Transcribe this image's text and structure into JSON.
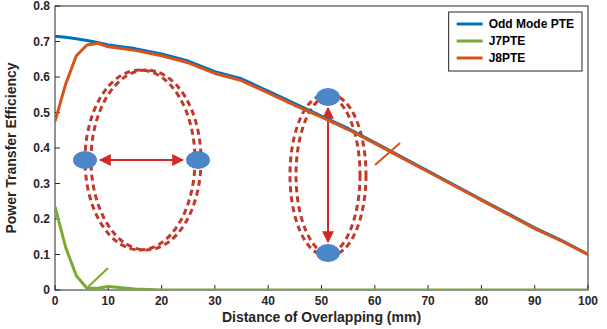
{
  "chart_data": {
    "type": "line",
    "x_label": "Distance of Overlapping (mm)",
    "y_label": "Power Transfer Efficiency",
    "x": [
      0,
      2,
      4,
      6,
      8,
      10,
      15,
      20,
      25,
      30,
      35,
      40,
      45,
      50,
      55,
      60,
      65,
      70,
      75,
      80,
      85,
      90,
      95,
      100
    ],
    "series": [
      {
        "name": "Odd Mode PTE",
        "color": "#0072bd",
        "values": [
          0.715,
          0.712,
          0.708,
          0.703,
          0.697,
          0.69,
          0.68,
          0.665,
          0.645,
          0.615,
          0.595,
          0.56,
          0.525,
          0.49,
          0.455,
          0.415,
          0.375,
          0.335,
          0.295,
          0.255,
          0.215,
          0.175,
          0.14,
          0.1
        ]
      },
      {
        "name": "J7PTE",
        "color": "#77ac30",
        "values": [
          0.235,
          0.12,
          0.04,
          0.005,
          0.005,
          0.01,
          0.003,
          0,
          0,
          0,
          0,
          0,
          0,
          0,
          0,
          0,
          0,
          0,
          0,
          0,
          0,
          0,
          0,
          0
        ]
      },
      {
        "name": "J8PTE",
        "color": "#d95319",
        "values": [
          0.475,
          0.58,
          0.66,
          0.69,
          0.695,
          0.685,
          0.675,
          0.66,
          0.64,
          0.61,
          0.59,
          0.555,
          0.52,
          0.487,
          0.452,
          0.413,
          0.373,
          0.333,
          0.293,
          0.253,
          0.213,
          0.173,
          0.138,
          0.1
        ]
      }
    ],
    "xlim": [
      0,
      100
    ],
    "xticks": [
      0,
      10,
      20,
      30,
      40,
      50,
      60,
      70,
      80,
      90,
      100
    ],
    "ylim": [
      0,
      0.8
    ],
    "yticks": [
      0,
      0.1,
      0.2,
      0.3,
      0.4,
      0.5,
      0.6,
      0.7,
      0.8
    ],
    "grid": false,
    "legend": "upper right"
  }
}
